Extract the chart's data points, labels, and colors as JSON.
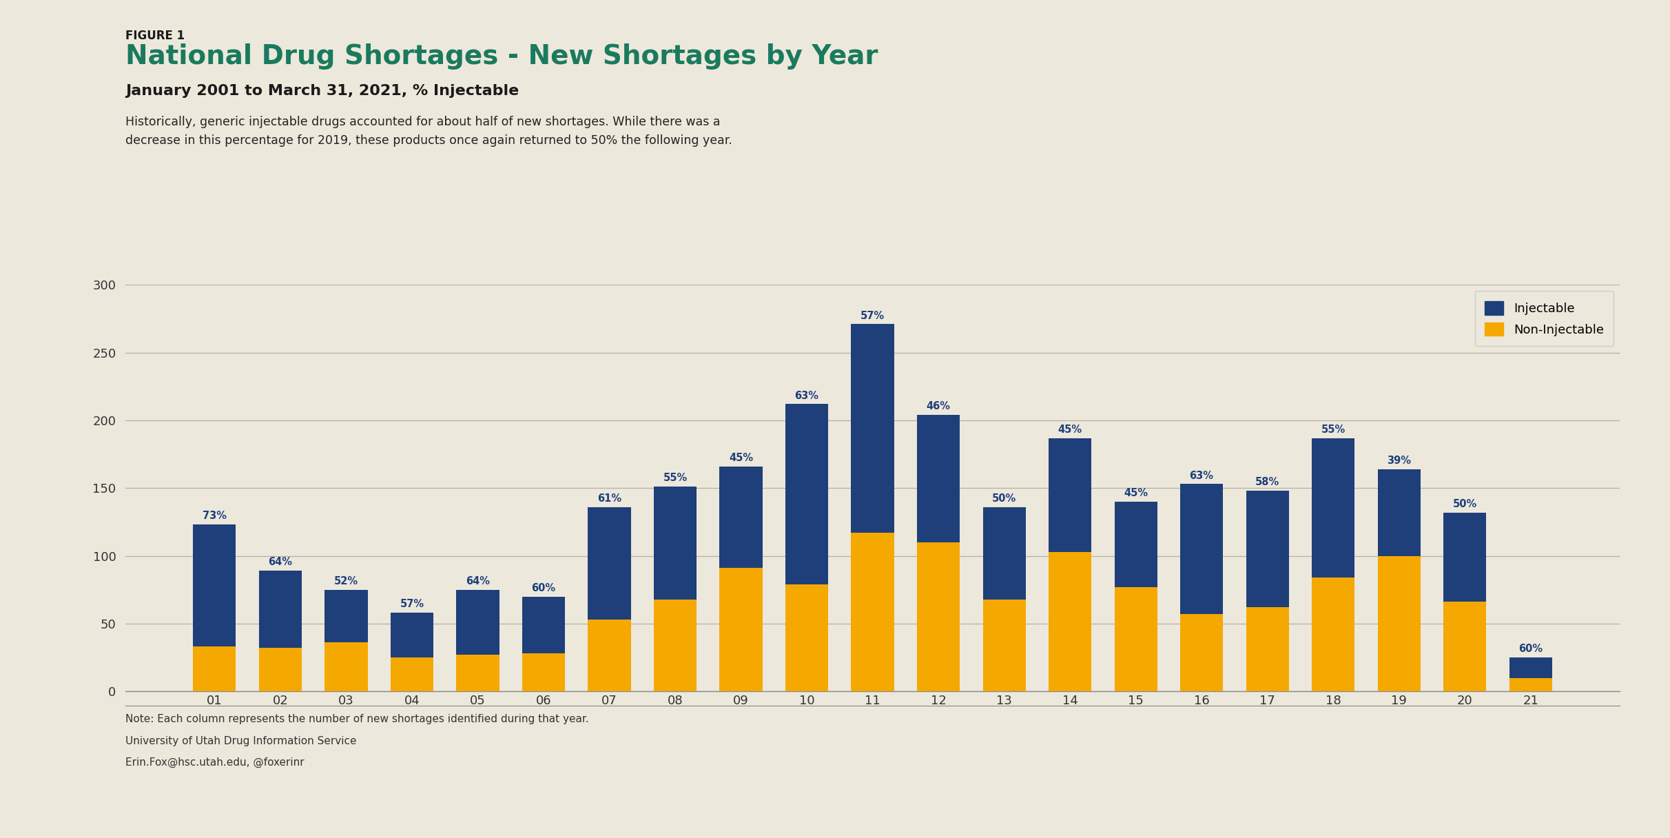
{
  "years": [
    "01",
    "02",
    "03",
    "04",
    "05",
    "06",
    "07",
    "08",
    "09",
    "10",
    "11",
    "12",
    "13",
    "14",
    "15",
    "16",
    "17",
    "18",
    "19",
    "20",
    "21"
  ],
  "injectable": [
    90,
    57,
    39,
    33,
    48,
    42,
    83,
    83,
    75,
    133,
    154,
    94,
    68,
    84,
    63,
    96,
    86,
    103,
    64,
    66,
    15
  ],
  "non_injectable": [
    33,
    32,
    36,
    25,
    27,
    28,
    53,
    68,
    91,
    79,
    117,
    110,
    68,
    103,
    77,
    57,
    62,
    84,
    100,
    66,
    10
  ],
  "pct_labels": [
    "73%",
    "64%",
    "52%",
    "57%",
    "64%",
    "60%",
    "61%",
    "55%",
    "45%",
    "63%",
    "57%",
    "46%",
    "50%",
    "45%",
    "45%",
    "63%",
    "58%",
    "55%",
    "39%",
    "50%",
    "60%"
  ],
  "injectable_color": "#1e3f7a",
  "non_injectable_color": "#f5a800",
  "bg_color": "#ede8dc",
  "grid_color": "#b8b0a0",
  "figure_label": "FIGURE 1",
  "title_main": "National Drug Shortages - New Shortages by Year",
  "title_sub": "January 2001 to March 31, 2021, % Injectable",
  "title_color": "#1a7a5e",
  "figure_label_color": "#1a1a1a",
  "subtitle_color": "#1a1a1a",
  "description": "Historically, generic injectable drugs accounted for about half of new shortages. While there was a\ndecrease in this percentage for 2019, these products once again returned to 50% the following year.",
  "footer_lines": [
    "Note: Each column represents the number of new shortages identified during that year.",
    "University of Utah Drug Information Service",
    "Erin.Fox@hsc.utah.edu, @foxerinr"
  ],
  "legend_injectable": "Injectable",
  "legend_non_injectable": "Non-Injectable",
  "ylim": [
    0,
    300
  ],
  "yticks": [
    0,
    50,
    100,
    150,
    200,
    250,
    300
  ],
  "top_border_color": "#1a1a1a",
  "pct_label_color": "#1e3f7a",
  "separator_color": "#888888"
}
